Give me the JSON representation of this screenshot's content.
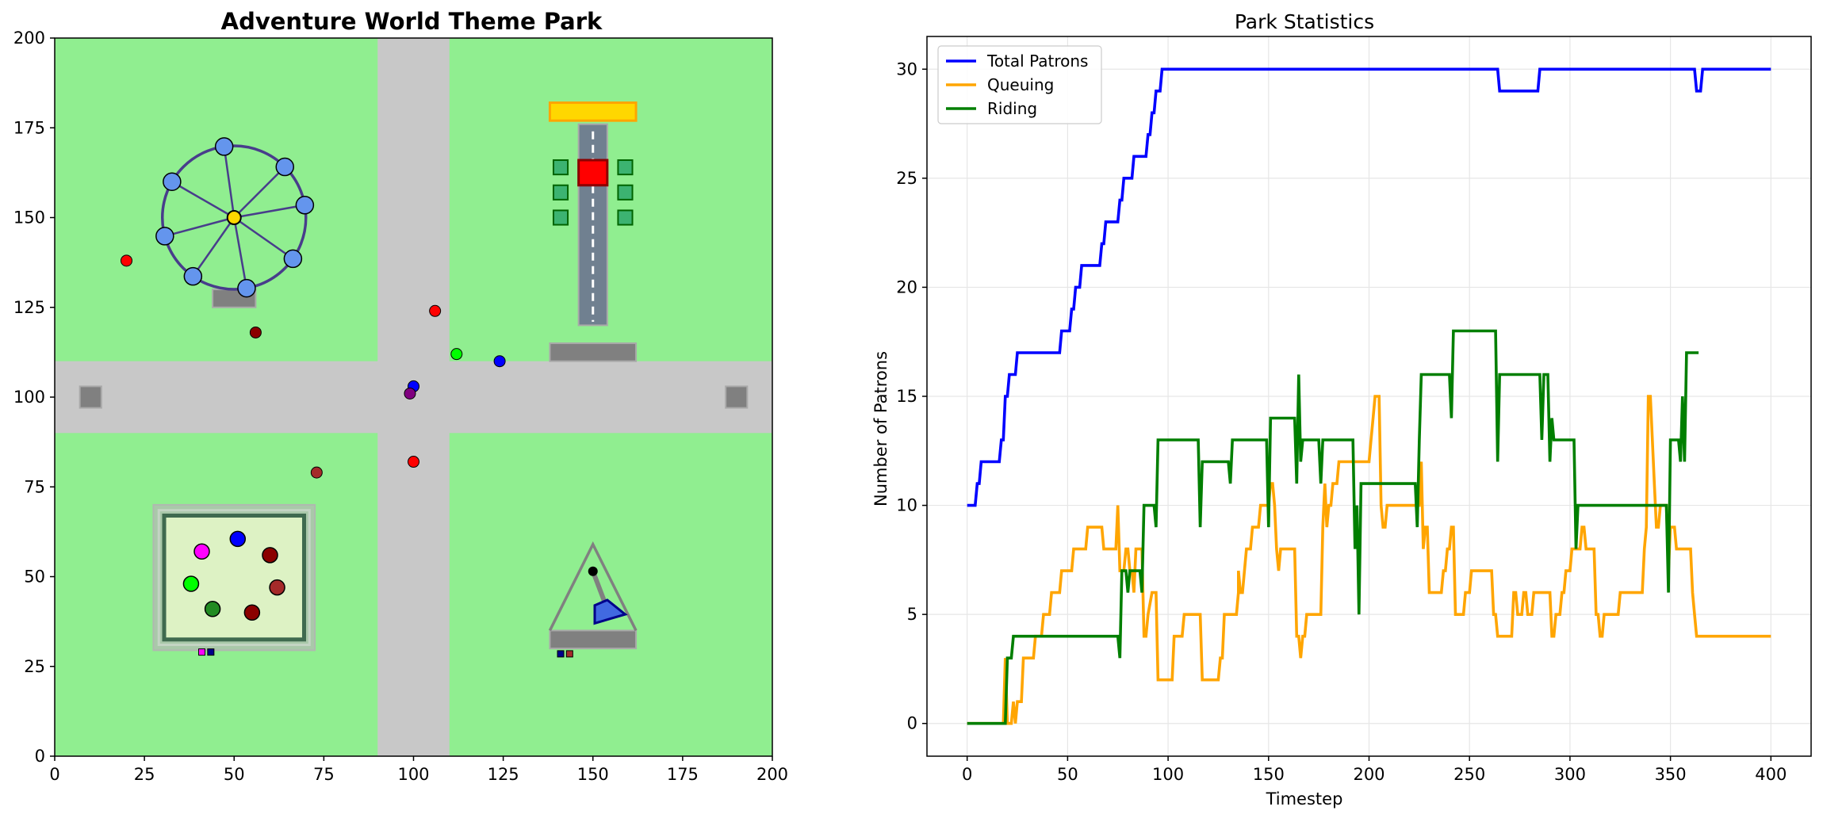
{
  "colors": {
    "grass": "#90ee90",
    "path": "#c8c8c8",
    "total": "#0000ff",
    "queue": "#ffa500",
    "riding": "#007f00",
    "grid": "#e6e6e6"
  },
  "park_map": {
    "title": "Adventure World Theme Park",
    "x_ticks": [
      "0",
      "25",
      "50",
      "75",
      "100",
      "125",
      "150",
      "175",
      "200"
    ],
    "y_ticks": [
      "0",
      "25",
      "50",
      "75",
      "100",
      "125",
      "150",
      "175",
      "200"
    ],
    "xlim": [
      0,
      200
    ],
    "ylim": [
      0,
      200
    ],
    "paths": [
      {
        "name": "vertical-path",
        "x0": 90,
        "x1": 110,
        "y0": 0,
        "y1": 200
      },
      {
        "name": "horizontal-path",
        "x0": 0,
        "x1": 200,
        "y0": 90,
        "y1": 110
      }
    ],
    "attractions": [
      {
        "name": "ferris-wheel",
        "center": [
          50,
          150
        ],
        "radius": 20,
        "color": "#6495ed"
      },
      {
        "name": "drop-tower",
        "center": [
          150,
          150
        ],
        "color": "#808080"
      },
      {
        "name": "bumper-cars",
        "center": [
          50,
          50
        ],
        "color": "#ddf2c4"
      },
      {
        "name": "pirate-ship",
        "center": [
          150,
          50
        ],
        "color": "#4169e1"
      }
    ],
    "patrons": [
      {
        "x": 20,
        "y": 138,
        "color": "#ff0000"
      },
      {
        "x": 56,
        "y": 118,
        "color": "#8b0000"
      },
      {
        "x": 106,
        "y": 124,
        "color": "#ff0000"
      },
      {
        "x": 112,
        "y": 112,
        "color": "#00ff00"
      },
      {
        "x": 124,
        "y": 110,
        "color": "#0000ff"
      },
      {
        "x": 100,
        "y": 103,
        "color": "#0000ff"
      },
      {
        "x": 99,
        "y": 101,
        "color": "#800080"
      },
      {
        "x": 73,
        "y": 79,
        "color": "#a52a2a"
      },
      {
        "x": 100,
        "y": 82,
        "color": "#ff0000"
      }
    ]
  },
  "chart_data": {
    "type": "line",
    "title": "Park Statistics",
    "xlabel": "Timestep",
    "ylabel": "Number of Patrons",
    "xlim": [
      -20,
      420
    ],
    "ylim": [
      -1.5,
      31.5
    ],
    "x_ticks": [
      0,
      50,
      100,
      150,
      200,
      250,
      300,
      350,
      400
    ],
    "y_ticks": [
      0,
      5,
      10,
      15,
      20,
      25,
      30
    ],
    "grid": true,
    "legend": "top-left",
    "series": [
      {
        "name": "Total Patrons",
        "color": "#0000ff",
        "points": [
          [
            0,
            10
          ],
          [
            4,
            10
          ],
          [
            5,
            11
          ],
          [
            6,
            11
          ],
          [
            7,
            12
          ],
          [
            16,
            12
          ],
          [
            17,
            13
          ],
          [
            18,
            13
          ],
          [
            19,
            15
          ],
          [
            20,
            15
          ],
          [
            21,
            16
          ],
          [
            24,
            16
          ],
          [
            25,
            17
          ],
          [
            46,
            17
          ],
          [
            47,
            18
          ],
          [
            51,
            18
          ],
          [
            52,
            19
          ],
          [
            53,
            19
          ],
          [
            54,
            20
          ],
          [
            56,
            20
          ],
          [
            57,
            21
          ],
          [
            66,
            21
          ],
          [
            67,
            22
          ],
          [
            68,
            22
          ],
          [
            69,
            23
          ],
          [
            75,
            23
          ],
          [
            76,
            24
          ],
          [
            77,
            24
          ],
          [
            78,
            25
          ],
          [
            82,
            25
          ],
          [
            83,
            26
          ],
          [
            89,
            26
          ],
          [
            90,
            27
          ],
          [
            91,
            27
          ],
          [
            92,
            28
          ],
          [
            93,
            28
          ],
          [
            94,
            29
          ],
          [
            96,
            29
          ],
          [
            97,
            30
          ],
          [
            264,
            30
          ],
          [
            265,
            29
          ],
          [
            284,
            29
          ],
          [
            285,
            30
          ],
          [
            362,
            30
          ],
          [
            363,
            29
          ],
          [
            365,
            29
          ],
          [
            366,
            30
          ],
          [
            400,
            30
          ]
        ]
      },
      {
        "name": "Queuing",
        "color": "#ffa500",
        "points": [
          [
            0,
            0
          ],
          [
            18,
            0
          ],
          [
            19,
            3
          ],
          [
            20,
            0
          ],
          [
            22,
            0
          ],
          [
            23,
            1
          ],
          [
            24,
            0
          ],
          [
            25,
            1
          ],
          [
            27,
            1
          ],
          [
            28,
            3
          ],
          [
            33,
            3
          ],
          [
            34,
            4
          ],
          [
            37,
            4
          ],
          [
            38,
            5
          ],
          [
            41,
            5
          ],
          [
            42,
            6
          ],
          [
            46,
            6
          ],
          [
            47,
            7
          ],
          [
            51,
            7
          ],
          [
            52,
            7
          ],
          [
            53,
            8
          ],
          [
            55,
            8
          ],
          [
            56,
            8
          ],
          [
            59,
            8
          ],
          [
            60,
            9
          ],
          [
            67,
            9
          ],
          [
            68,
            8
          ],
          [
            74,
            8
          ],
          [
            75,
            10
          ],
          [
            76,
            7
          ],
          [
            78,
            7
          ],
          [
            79,
            8
          ],
          [
            80,
            8
          ],
          [
            81,
            7
          ],
          [
            82,
            7
          ],
          [
            83,
            6
          ],
          [
            84,
            8
          ],
          [
            87,
            8
          ],
          [
            88,
            4
          ],
          [
            89,
            4
          ],
          [
            90,
            5
          ],
          [
            92,
            6
          ],
          [
            94,
            6
          ],
          [
            95,
            2
          ],
          [
            102,
            2
          ],
          [
            103,
            4
          ],
          [
            107,
            4
          ],
          [
            108,
            5
          ],
          [
            116,
            5
          ],
          [
            117,
            2
          ],
          [
            125,
            2
          ],
          [
            126,
            3
          ],
          [
            127,
            3
          ],
          [
            128,
            5
          ],
          [
            134,
            5
          ],
          [
            135,
            6
          ],
          [
            135,
            7
          ],
          [
            136,
            6
          ],
          [
            137,
            6
          ],
          [
            138,
            7
          ],
          [
            139,
            8
          ],
          [
            141,
            8
          ],
          [
            142,
            9
          ],
          [
            145,
            9
          ],
          [
            146,
            10
          ],
          [
            150,
            10
          ],
          [
            151,
            11
          ],
          [
            152,
            11
          ],
          [
            153,
            10
          ],
          [
            154,
            8
          ],
          [
            155,
            7
          ],
          [
            156,
            8
          ],
          [
            160,
            8
          ],
          [
            161,
            8
          ],
          [
            162,
            8
          ],
          [
            163,
            8
          ],
          [
            164,
            4
          ],
          [
            165,
            4
          ],
          [
            166,
            3
          ],
          [
            167,
            4
          ],
          [
            168,
            4
          ],
          [
            169,
            5
          ],
          [
            175,
            5
          ],
          [
            176,
            5
          ],
          [
            177,
            9
          ],
          [
            178,
            11
          ],
          [
            179,
            9
          ],
          [
            180,
            10
          ],
          [
            181,
            10
          ],
          [
            182,
            11
          ],
          [
            183,
            11
          ],
          [
            184,
            11
          ],
          [
            185,
            12
          ],
          [
            186,
            12
          ],
          [
            200,
            12
          ],
          [
            201,
            13
          ],
          [
            202,
            14
          ],
          [
            203,
            15
          ],
          [
            205,
            15
          ],
          [
            206,
            10
          ],
          [
            207,
            9
          ],
          [
            208,
            9
          ],
          [
            209,
            10
          ],
          [
            225,
            10
          ],
          [
            226,
            12
          ],
          [
            227,
            8
          ],
          [
            228,
            9
          ],
          [
            229,
            9
          ],
          [
            230,
            6
          ],
          [
            236,
            6
          ],
          [
            237,
            7
          ],
          [
            238,
            7
          ],
          [
            239,
            8
          ],
          [
            240,
            8
          ],
          [
            241,
            9
          ],
          [
            242,
            9
          ],
          [
            243,
            5
          ],
          [
            247,
            5
          ],
          [
            248,
            6
          ],
          [
            250,
            6
          ],
          [
            251,
            7
          ],
          [
            260,
            7
          ],
          [
            261,
            7
          ],
          [
            262,
            5
          ],
          [
            263,
            5
          ],
          [
            264,
            4
          ],
          [
            271,
            4
          ],
          [
            272,
            6
          ],
          [
            273,
            6
          ],
          [
            274,
            5
          ],
          [
            276,
            5
          ],
          [
            277,
            6
          ],
          [
            278,
            6
          ],
          [
            279,
            5
          ],
          [
            281,
            5
          ],
          [
            282,
            6
          ],
          [
            283,
            6
          ],
          [
            290,
            6
          ],
          [
            291,
            4
          ],
          [
            292,
            4
          ],
          [
            293,
            5
          ],
          [
            295,
            5
          ],
          [
            296,
            6
          ],
          [
            297,
            6
          ],
          [
            298,
            7
          ],
          [
            300,
            7
          ],
          [
            301,
            8
          ],
          [
            305,
            8
          ],
          [
            306,
            9
          ],
          [
            307,
            9
          ],
          [
            308,
            8
          ],
          [
            312,
            8
          ],
          [
            313,
            5
          ],
          [
            314,
            5
          ],
          [
            315,
            4
          ],
          [
            316,
            4
          ],
          [
            317,
            5
          ],
          [
            324,
            5
          ],
          [
            325,
            6
          ],
          [
            336,
            6
          ],
          [
            337,
            8
          ],
          [
            338,
            9
          ],
          [
            339,
            15
          ],
          [
            340,
            15
          ],
          [
            341,
            13
          ],
          [
            342,
            11
          ],
          [
            343,
            9
          ],
          [
            344,
            9
          ],
          [
            345,
            10
          ],
          [
            347,
            10
          ],
          [
            348,
            10
          ],
          [
            349,
            7
          ],
          [
            350,
            9
          ],
          [
            352,
            9
          ],
          [
            353,
            8
          ],
          [
            360,
            8
          ],
          [
            361,
            6
          ],
          [
            362,
            5
          ],
          [
            363,
            4
          ],
          [
            400,
            4
          ]
        ]
      },
      {
        "name": "Riding",
        "color": "#007f00",
        "points": [
          [
            0,
            0
          ],
          [
            19,
            0
          ],
          [
            20,
            3
          ],
          [
            21,
            3
          ],
          [
            22,
            3
          ],
          [
            23,
            4
          ],
          [
            75,
            4
          ],
          [
            76,
            3
          ],
          [
            77,
            7
          ],
          [
            79,
            7
          ],
          [
            80,
            6
          ],
          [
            81,
            7
          ],
          [
            82,
            7
          ],
          [
            83,
            7
          ],
          [
            84,
            7
          ],
          [
            86,
            7
          ],
          [
            87,
            6
          ],
          [
            88,
            10
          ],
          [
            93,
            10
          ],
          [
            94,
            9
          ],
          [
            95,
            13
          ],
          [
            115,
            13
          ],
          [
            116,
            9
          ],
          [
            117,
            12
          ],
          [
            130,
            12
          ],
          [
            131,
            11
          ],
          [
            132,
            13
          ],
          [
            149,
            13
          ],
          [
            150,
            9
          ],
          [
            151,
            14
          ],
          [
            163,
            14
          ],
          [
            164,
            11
          ],
          [
            165,
            16
          ],
          [
            166,
            12
          ],
          [
            167,
            13
          ],
          [
            175,
            13
          ],
          [
            176,
            11
          ],
          [
            177,
            13
          ],
          [
            192,
            13
          ],
          [
            193,
            8
          ],
          [
            194,
            10
          ],
          [
            195,
            5
          ],
          [
            196,
            11
          ],
          [
            223,
            11
          ],
          [
            224,
            9
          ],
          [
            225,
            13
          ],
          [
            226,
            16
          ],
          [
            240,
            16
          ],
          [
            241,
            14
          ],
          [
            242,
            18
          ],
          [
            263,
            18
          ],
          [
            264,
            12
          ],
          [
            265,
            16
          ],
          [
            285,
            16
          ],
          [
            286,
            13
          ],
          [
            287,
            16
          ],
          [
            289,
            16
          ],
          [
            290,
            12
          ],
          [
            291,
            14
          ],
          [
            292,
            13
          ],
          [
            302,
            13
          ],
          [
            303,
            8
          ],
          [
            304,
            10
          ],
          [
            348,
            10
          ],
          [
            349,
            6
          ],
          [
            350,
            13
          ],
          [
            354,
            13
          ],
          [
            355,
            12
          ],
          [
            356,
            15
          ],
          [
            357,
            12
          ],
          [
            358,
            17
          ],
          [
            364,
            17
          ]
        ]
      }
    ]
  }
}
